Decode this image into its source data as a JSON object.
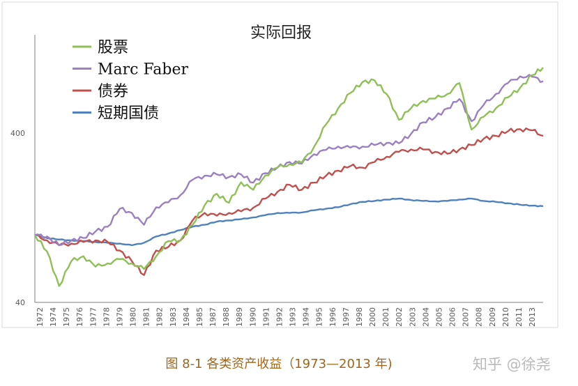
{
  "chart_data": {
    "type": "line",
    "title": "实际回报",
    "y_scale": "log",
    "ylim": [
      40,
      1550
    ],
    "y_ticks": [
      40,
      400
    ],
    "y_tick_labels": [
      "40",
      "400"
    ],
    "x_tick_labels": [
      "1972",
      "1974",
      "1975",
      "1976",
      "1977",
      "1978",
      "1979",
      "1980",
      "1981",
      "1982",
      "1983",
      "1984",
      "1985",
      "1987",
      "1988",
      "1989",
      "1990",
      "1991",
      "1992",
      "1993",
      "1994",
      "1995",
      "1996",
      "1997",
      "1998",
      "2000",
      "2001",
      "2002",
      "2003",
      "2004",
      "2005",
      "2006",
      "2007",
      "2008",
      "2009",
      "2010",
      "2011",
      "2013"
    ],
    "xlim": [
      1972,
      2013.9
    ],
    "legend_position": "top-left",
    "grid": false,
    "x": [
      1972,
      1973,
      1974,
      1975,
      1976,
      1977,
      1978,
      1979,
      1980,
      1981,
      1982,
      1983,
      1984,
      1985,
      1986,
      1987,
      1988,
      1989,
      1990,
      1991,
      1992,
      1993,
      1994,
      1995,
      1996,
      1997,
      1998,
      1999,
      2000,
      2001,
      2002,
      2003,
      2004,
      2005,
      2006,
      2007,
      2008,
      2009,
      2010,
      2011,
      2012,
      2013,
      2013.9
    ],
    "series": [
      {
        "name": "股票",
        "color": "#8fbf57",
        "values": [
          100,
          80,
          50,
          70,
          75,
          65,
          68,
          72,
          68,
          63,
          75,
          92,
          93,
          115,
          150,
          175,
          155,
          205,
          185,
          225,
          250,
          262,
          268,
          330,
          450,
          560,
          690,
          800,
          820,
          680,
          480,
          560,
          620,
          640,
          680,
          790,
          420,
          500,
          560,
          650,
          740,
          880,
          975
        ]
      },
      {
        "name": "Marc Faber",
        "color": "#9a80c0",
        "values": [
          100,
          98,
          87,
          93,
          96,
          105,
          112,
          143,
          135,
          115,
          146,
          156,
          172,
          212,
          224,
          228,
          220,
          228,
          204,
          232,
          250,
          270,
          264,
          300,
          318,
          333,
          328,
          333,
          340,
          350,
          348,
          395,
          463,
          496,
          560,
          635,
          470,
          587,
          680,
          790,
          865,
          860,
          810
        ]
      },
      {
        "name": "债券",
        "color": "#c0504d",
        "values": [
          100,
          93,
          87,
          89,
          91,
          93,
          91,
          81,
          70,
          58,
          81,
          85,
          93,
          122,
          135,
          130,
          135,
          138,
          145,
          164,
          180,
          198,
          185,
          204,
          224,
          240,
          255,
          250,
          270,
          290,
          310,
          320,
          320,
          310,
          302,
          320,
          340,
          370,
          385,
          410,
          422,
          415,
          385
        ]
      },
      {
        "name": "短期国债",
        "color": "#4f81bd",
        "values": [
          100,
          96,
          94,
          93,
          92,
          91,
          90,
          89,
          87,
          90,
          98,
          102,
          107,
          112,
          115,
          120,
          122,
          124,
          127,
          131,
          135,
          135,
          136,
          140,
          143,
          146,
          152,
          157,
          159,
          162,
          164,
          161,
          159,
          158,
          159,
          162,
          164,
          159,
          157,
          154,
          151,
          149,
          148
        ]
      }
    ]
  },
  "caption": "图 8-1 各类资产收益（1973—2013 年)",
  "watermark": "知乎 @徐尧"
}
